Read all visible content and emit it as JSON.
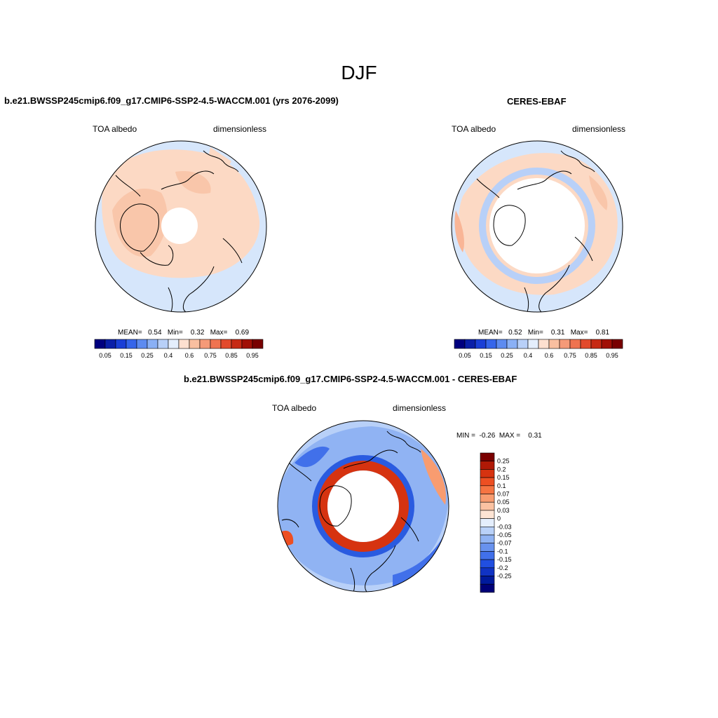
{
  "page_title": "DJF",
  "panels": [
    {
      "title": "b.e21.BWSSP245cmip6.f09_g17.CMIP6-SSP2-4.5-WACCM.001 (yrs 2076-2099)",
      "variable": "TOA albedo",
      "units": "dimensionless",
      "stats": "MEAN=   0.54   Min=    0.32   Max=    0.69"
    },
    {
      "title": "CERES-EBAF",
      "variable": "TOA albedo",
      "units": "dimensionless",
      "stats": "MEAN=   0.52   Min=    0.31   Max=    0.81"
    },
    {
      "title": "b.e21.BWSSP245cmip6.f09_g17.CMIP6-SSP2-4.5-WACCM.001 - CERES-EBAF",
      "variable": "TOA albedo",
      "units": "dimensionless",
      "stats": "MIN =  -0.26  MAX =    0.31"
    }
  ],
  "albedo_colorbar": {
    "colors": [
      "#00007f",
      "#0a1fa8",
      "#1a3fd6",
      "#3565ea",
      "#5d8bf0",
      "#8ab0f5",
      "#b8d0f8",
      "#e4eefc",
      "#fde0d0",
      "#f9bfa0",
      "#f59a78",
      "#ef7350",
      "#e24a2c",
      "#c62a14",
      "#a01006",
      "#780000"
    ],
    "tick_labels": [
      "0.05",
      "0.15",
      "0.25",
      "0.4",
      "0.6",
      "0.75",
      "0.85",
      "0.95"
    ]
  },
  "diff_colorbar": {
    "colors": [
      "#7a0000",
      "#b01906",
      "#d63310",
      "#ed4f22",
      "#f67442",
      "#f89c70",
      "#fbc2a2",
      "#fde4d4",
      "#e4eefc",
      "#b9d1f8",
      "#90b3f3",
      "#6892ee",
      "#4170ea",
      "#214fe0",
      "#1033c4",
      "#001a9c",
      "#000078"
    ],
    "tick_labels": [
      "0.25",
      "0.2",
      "0.15",
      "0.1",
      "0.07",
      "0.05",
      "0.03",
      "0",
      "-0.03",
      "-0.05",
      "-0.07",
      "-0.1",
      "-0.15",
      "-0.2",
      "-0.25"
    ]
  }
}
